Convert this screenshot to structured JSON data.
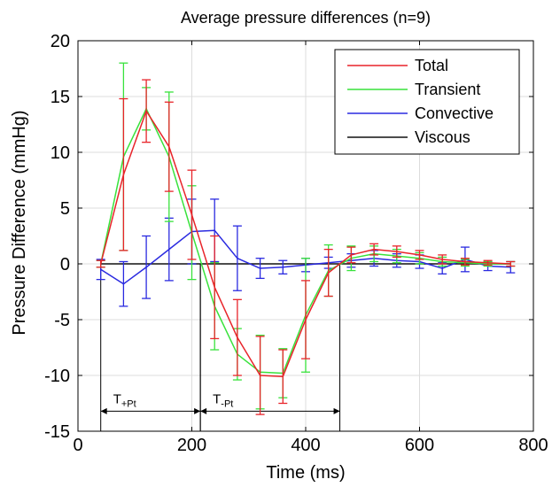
{
  "chart_data": {
    "type": "line",
    "title": "Average pressure differences (n=9)",
    "xlabel": "Time (ms)",
    "ylabel": "Pressure Difference (mmHg)",
    "xlim": [
      0,
      800
    ],
    "ylim": [
      -15,
      20
    ],
    "xticks": [
      0,
      200,
      400,
      600,
      800
    ],
    "yticks": [
      -15,
      -10,
      -5,
      0,
      5,
      10,
      15,
      20
    ],
    "grid": true,
    "legend_position": "top-right",
    "x": [
      40,
      80,
      120,
      160,
      200,
      240,
      280,
      320,
      360,
      400,
      440,
      480,
      520,
      560,
      600,
      640,
      680,
      720,
      760
    ],
    "series": [
      {
        "name": "Total",
        "color": "#e8242a",
        "values": [
          0,
          8.0,
          13.7,
          10.5,
          4.4,
          -2.1,
          -6.6,
          -10.0,
          -10.1,
          -5.0,
          -0.8,
          0.8,
          1.3,
          1.1,
          0.8,
          0.4,
          0.2,
          0.1,
          0
        ],
        "errors": [
          0.3,
          6.8,
          2.8,
          4.0,
          4.0,
          4.6,
          3.4,
          3.5,
          2.4,
          3.5,
          2.1,
          0.7,
          0.5,
          0.5,
          0.4,
          0.4,
          0.3,
          0.2,
          0.2
        ]
      },
      {
        "name": "Transient",
        "color": "#39e23c",
        "values": [
          0,
          9.6,
          13.9,
          9.6,
          2.8,
          -3.8,
          -8.1,
          -9.7,
          -9.8,
          -4.6,
          -0.6,
          0.5,
          0.9,
          0.7,
          0.5,
          0.2,
          0.1,
          0,
          0
        ],
        "errors": [
          0.3,
          8.4,
          1.9,
          5.8,
          4.2,
          3.9,
          2.3,
          3.3,
          2.2,
          5.1,
          2.3,
          1.1,
          0.7,
          0.6,
          0.5,
          0.4,
          0.3,
          0.2,
          0.2
        ]
      },
      {
        "name": "Convective",
        "color": "#2a2ae0",
        "values": [
          -0.5,
          -1.8,
          -0.3,
          1.3,
          2.9,
          3.0,
          0.5,
          -0.4,
          -0.3,
          -0.1,
          0.1,
          0.3,
          0.5,
          0.3,
          0.2,
          -0.4,
          0.4,
          -0.2,
          -0.3
        ],
        "errors": [
          0.9,
          2.0,
          2.8,
          2.8,
          2.9,
          2.8,
          2.9,
          0.9,
          0.6,
          0.6,
          0.5,
          0.6,
          0.7,
          0.6,
          0.6,
          0.5,
          1.1,
          0.4,
          0.5
        ]
      },
      {
        "name": "Viscous",
        "color": "#111111",
        "values": [
          0,
          0,
          0,
          0,
          0,
          0,
          0,
          0,
          0,
          0,
          0,
          0,
          0,
          0,
          0,
          0,
          0,
          0,
          0
        ],
        "errors": [
          0,
          0,
          0,
          0,
          0,
          0,
          0,
          0,
          0,
          0,
          0,
          0,
          0,
          0,
          0,
          0,
          0,
          0,
          0
        ]
      }
    ],
    "annotations": [
      {
        "label": "T",
        "subscript": "+Pt",
        "x_start": 40,
        "x_end": 215,
        "y": -13.2
      },
      {
        "label": "T",
        "subscript": "-Pt",
        "x_start": 215,
        "x_end": 460,
        "y": -13.2
      }
    ]
  }
}
